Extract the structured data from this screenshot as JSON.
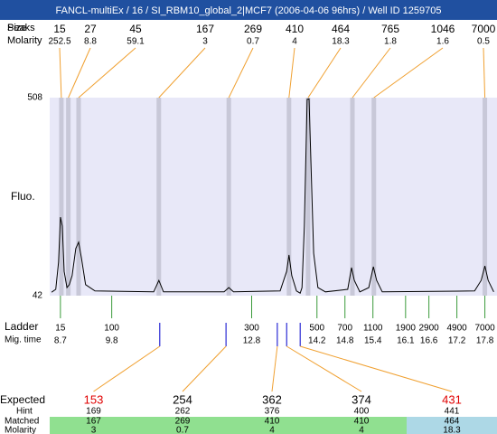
{
  "title": "FANCL-multiEx / 16 / SI_RBM10_global_2|MCF7 (2006-04-06 96hrs) / Well ID 1259705",
  "chart_data": {
    "type": "line",
    "y_label": "Fluo.",
    "ylim": [
      42,
      508
    ],
    "yticks": [
      42,
      508
    ],
    "xlim": [
      8.47,
      18.06
    ],
    "color": "#000000",
    "x": [
      8.51,
      8.6,
      8.66,
      8.7,
      8.74,
      8.78,
      8.84,
      8.89,
      8.95,
      9.03,
      9.09,
      9.15,
      9.24,
      9.44,
      10.7,
      10.81,
      10.91,
      12.21,
      12.31,
      12.41,
      13.41,
      13.55,
      13.6,
      13.66,
      13.76,
      13.84,
      13.88,
      13.93,
      13.99,
      14.03,
      14.07,
      14.13,
      14.22,
      14.38,
      14.86,
      14.94,
      15.0,
      15.12,
      15.31,
      15.41,
      15.48,
      15.6,
      17.58,
      17.72,
      17.8,
      17.87,
      17.99
    ],
    "values": [
      50,
      57,
      121,
      227,
      206,
      99,
      61,
      68,
      89,
      153,
      168,
      131,
      68,
      53,
      51,
      78,
      51,
      51,
      61,
      51,
      53,
      99,
      138,
      89,
      53,
      48,
      61,
      206,
      504,
      505,
      355,
      142,
      61,
      51,
      57,
      108,
      78,
      51,
      61,
      110,
      78,
      51,
      53,
      78,
      112,
      78,
      51
    ],
    "peaks": {
      "labels": [
        "Peaks",
        "Size"
      ],
      "molarity_label": "Molarity",
      "sizes": [
        15,
        27,
        45,
        167,
        269,
        410,
        464,
        765,
        1046,
        7000
      ],
      "molarity": [
        252.5,
        8.8,
        59.1,
        3,
        0.7,
        4,
        18.3,
        1.8,
        1.6,
        0.5
      ],
      "times": [
        8.72,
        8.87,
        9.09,
        10.81,
        12.31,
        13.6,
        14.01,
        14.96,
        15.42,
        17.8
      ],
      "band_color": "#c8c8d8",
      "line_color": "#f0a030"
    },
    "ladder": {
      "label": "Ladder",
      "time_label": "Mig. time",
      "sizes": [
        15,
        100,
        300,
        500,
        700,
        1100,
        1900,
        2900,
        4900,
        7000
      ],
      "times": [
        8.7,
        9.8,
        12.8,
        14.2,
        14.8,
        15.4,
        16.1,
        16.6,
        17.2,
        17.8
      ],
      "color": "#3a9a3a"
    },
    "expected": {
      "label": "Expected",
      "values": [
        153,
        254,
        362,
        374,
        431
      ],
      "colors": [
        "#e00000",
        "#000000",
        "#000000",
        "#000000",
        "#e00000"
      ],
      "times": [
        10.83,
        12.25,
        13.35,
        13.55,
        13.84
      ],
      "mark_color": "#0000cc",
      "hint_label": "Hint",
      "hint": [
        169,
        262,
        376,
        400,
        441
      ],
      "matched_label": "Matched",
      "matched": [
        167,
        269,
        410,
        410,
        464
      ],
      "matched_colors": [
        "#90e090",
        "#90e090",
        "#90e090",
        "#90e090",
        "#add8e6"
      ],
      "molarity_label": "Molarity",
      "molarity": [
        3,
        0.7,
        4,
        4,
        18.3
      ]
    }
  }
}
